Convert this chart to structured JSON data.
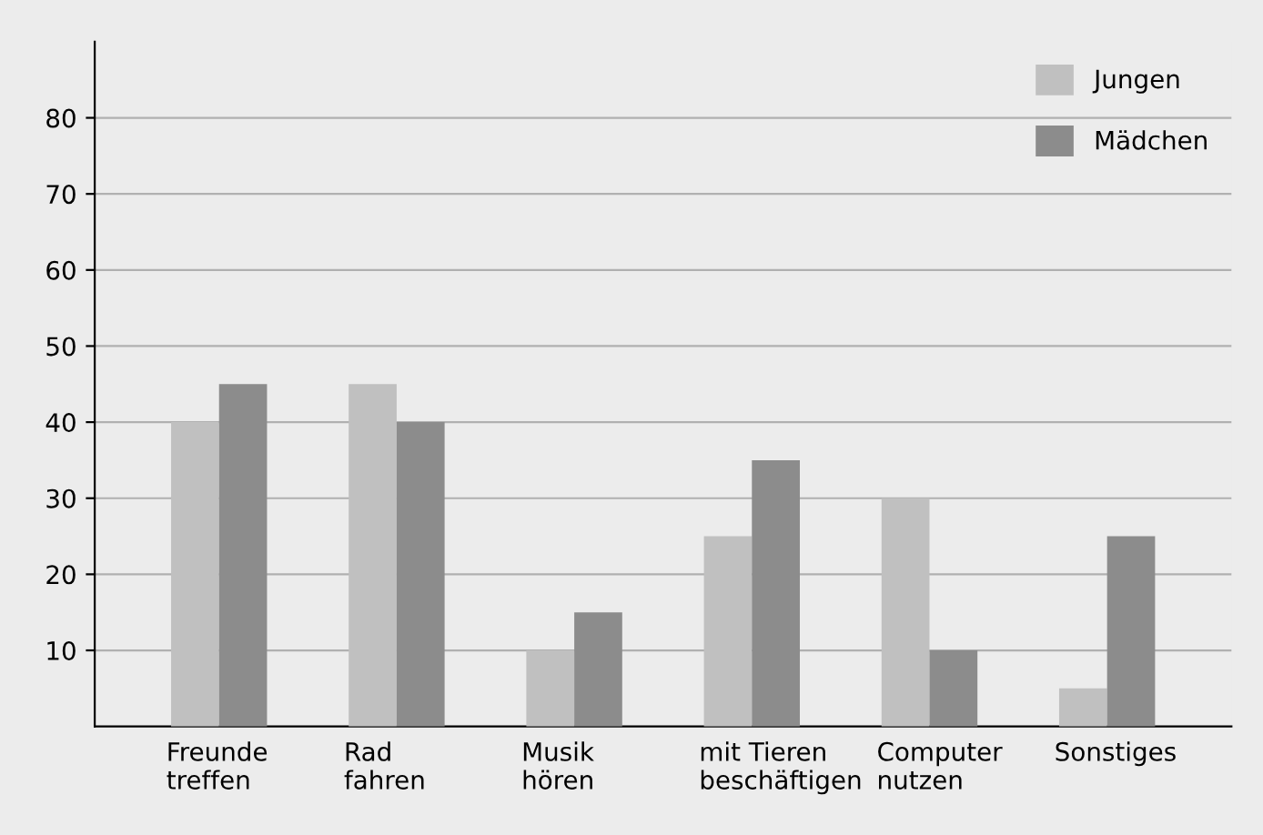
{
  "chart_data": {
    "type": "bar",
    "categories": [
      "Freunde\ntreffen",
      "Rad\nfahren",
      "Musik\nhören",
      "mit Tieren\nbeschäftigen",
      "Computer\nnutzen",
      "Sonstiges"
    ],
    "series": [
      {
        "name": "Jungen",
        "color": "#c0c0c0",
        "values": [
          40,
          45,
          10,
          25,
          30,
          5
        ]
      },
      {
        "name": "Mädchen",
        "color": "#8c8c8c",
        "values": [
          45,
          40,
          15,
          35,
          10,
          25
        ]
      }
    ],
    "ylim": [
      0,
      90
    ],
    "yticks": [
      10,
      20,
      30,
      40,
      50,
      60,
      70,
      80
    ],
    "grid": "y",
    "legend": "top right"
  }
}
